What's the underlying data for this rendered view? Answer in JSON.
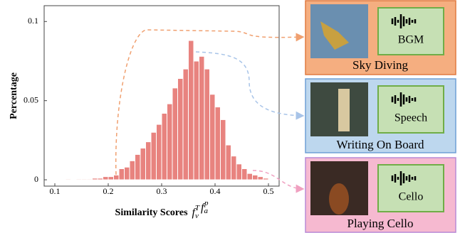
{
  "chart_data": {
    "type": "histogram",
    "ylabel": "Percentage",
    "xlabel": "Similarity Scores",
    "xlabel_formula": [
      {
        "base": "f",
        "sub": "v",
        "sup": "T"
      },
      {
        "base": "f",
        "sub": "a",
        "sup": "p"
      }
    ],
    "bins": [
      0.12,
      0.13,
      0.14,
      0.15,
      0.16,
      0.17,
      0.18,
      0.19,
      0.2,
      0.21,
      0.22,
      0.23,
      0.24,
      0.25,
      0.26,
      0.27,
      0.28,
      0.29,
      0.3,
      0.31,
      0.32,
      0.33,
      0.34,
      0.35,
      0.36,
      0.37,
      0.38,
      0.39,
      0.4,
      0.41,
      0.42,
      0.43,
      0.44,
      0.45,
      0.46,
      0.47,
      0.48,
      0.49,
      0.5
    ],
    "values": [
      0.0005,
      0.0003,
      0.0005,
      0.0005,
      0.0005,
      0.001,
      0.001,
      0.002,
      0.002,
      0.003,
      0.007,
      0.008,
      0.012,
      0.016,
      0.02,
      0.024,
      0.03,
      0.035,
      0.042,
      0.048,
      0.058,
      0.064,
      0.07,
      0.088,
      0.075,
      0.078,
      0.07,
      0.054,
      0.046,
      0.038,
      0.022,
      0.015,
      0.01,
      0.007,
      0.004,
      0.003,
      0.002,
      0.001
    ],
    "color": "#e8837f",
    "xlim": [
      0.08,
      0.52
    ],
    "ylim": [
      -0.004,
      0.11
    ],
    "xticks": [
      0.1,
      0.2,
      0.3,
      0.4,
      0.5
    ],
    "yticks": [
      0,
      0.05,
      0.1
    ]
  },
  "panels": [
    {
      "label": "Sky Diving",
      "audio": "BGM"
    },
    {
      "label": "Writing On Board",
      "audio": "Speech"
    },
    {
      "label": "Playing Cello",
      "audio": "Cello"
    }
  ]
}
